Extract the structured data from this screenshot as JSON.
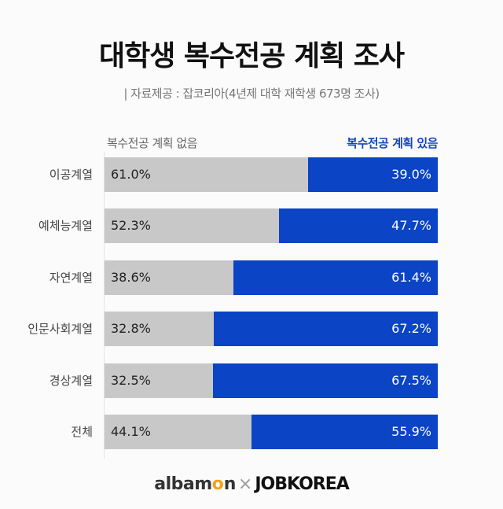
{
  "title": "대학생 복수전공 계획 조사",
  "subtitle": "| 자료제공 : 잡코리아(4년제 대학 재학생 673명 조사)",
  "legend": {
    "no": "복수전공 계획 없음",
    "yes": "복수전공 계획 있음"
  },
  "colors": {
    "no": "#c8c8c8",
    "yes": "#0b44c4"
  },
  "rows": [
    {
      "label": "이공계열",
      "no": "61.0%",
      "yes": "39.0%"
    },
    {
      "label": "예체능계열",
      "no": "52.3%",
      "yes": "47.7%"
    },
    {
      "label": "자연계열",
      "no": "38.6%",
      "yes": "61.4%"
    },
    {
      "label": "인문사회계열",
      "no": "32.8%",
      "yes": "67.2%"
    },
    {
      "label": "경상계열",
      "no": "32.5%",
      "yes": "67.5%"
    },
    {
      "label": "전체",
      "no": "44.1%",
      "yes": "55.9%"
    }
  ],
  "footer": {
    "albamon_a": "albam",
    "albamon_o": "o",
    "albamon_n": "n",
    "x": "×",
    "jobkorea": "JOBKOREA"
  },
  "chart_data": {
    "type": "bar",
    "orientation": "horizontal",
    "stacked": true,
    "title": "대학생 복수전공 계획 조사",
    "subtitle": "자료제공 : 잡코리아(4년제 대학 재학생 673명 조사)",
    "categories": [
      "이공계열",
      "예체능계열",
      "자연계열",
      "인문사회계열",
      "경상계열",
      "전체"
    ],
    "series": [
      {
        "name": "복수전공 계획 없음",
        "values": [
          61.0,
          52.3,
          38.6,
          32.8,
          32.5,
          44.1
        ],
        "color": "#c8c8c8"
      },
      {
        "name": "복수전공 계획 있음",
        "values": [
          39.0,
          47.7,
          61.4,
          67.2,
          67.5,
          55.9
        ],
        "color": "#0b44c4"
      }
    ],
    "xlim": [
      0,
      100
    ],
    "unit": "%",
    "grid": false,
    "legend_position": "top"
  }
}
